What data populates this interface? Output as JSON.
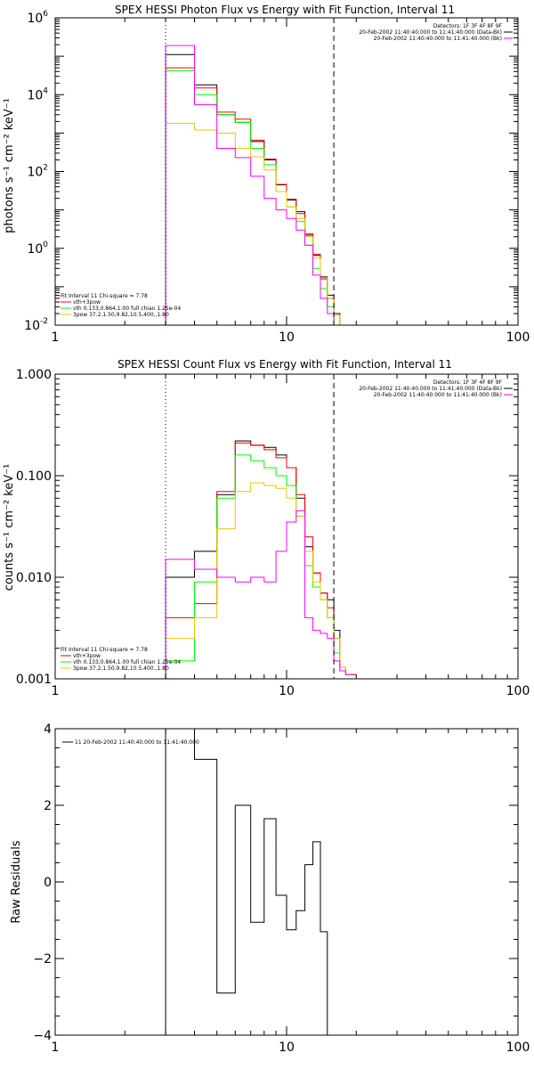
{
  "chart_data": [
    {
      "type": "line",
      "title": "SPEX HESSI Photon Flux vs Energy with Fit Function, Interval 11",
      "ylabel": "photons s⁻¹ cm⁻² keV⁻¹",
      "xlabel": "",
      "xscale": "log",
      "yscale": "log",
      "xlim": [
        1,
        100
      ],
      "ylim": [
        0.01,
        1000000
      ],
      "x_ticks": [
        1,
        10,
        100
      ],
      "x_tick_labels": [
        "1",
        "10",
        "100"
      ],
      "y_ticks": [
        0.01,
        1,
        100,
        10000,
        1000000
      ],
      "y_tick_labels": [
        [
          "10",
          "-2"
        ],
        [
          "10",
          "0"
        ],
        [
          "10",
          "2"
        ],
        [
          "10",
          "4"
        ],
        [
          "10",
          "6"
        ]
      ],
      "vlines": [
        {
          "x": 3.0,
          "style": "dotted"
        },
        {
          "x": 16.0,
          "style": "dashed"
        }
      ],
      "legend_right": {
        "position": "top-right",
        "lines": [
          {
            "text": "Detectors: 1F 3F 4F 8F 9F",
            "color": ""
          },
          {
            "text": "20-Feb-2002 11:40:40.000 to 11:41:40.000 (Data-Bk)",
            "color": "#000000"
          },
          {
            "text": "20-Feb-2002 11:40:40.000 to 11:41:40.000 (Bk)",
            "color": "#ff00ff"
          }
        ]
      },
      "legend_left": {
        "position": "bottom-left",
        "lines": [
          {
            "text": "Fit Interval 11    Chi-square = 7.78",
            "color": ""
          },
          {
            "text": "vth+3pow",
            "color": "#ff0000"
          },
          {
            "text": "vth 0.133,0.864,1.00  full chian 1.25e-04",
            "color": "#00ff00"
          },
          {
            "text": "3pow 37.2,1.50,9.82,10.5,400.,1.80",
            "color": "#e6c800"
          }
        ]
      },
      "x_edges": [
        3.0,
        4.0,
        5.0,
        6.0,
        7.0,
        8.0,
        9.0,
        10.0,
        11.0,
        12.0,
        13.0,
        14.0,
        15.0,
        16.0,
        17.0,
        18.0,
        20.0
      ],
      "series": [
        {
          "color": "#000000",
          "values": [
            110000,
            18000,
            3000,
            1900,
            600,
            200,
            45,
            18,
            9,
            2.2,
            0.65,
            0.18,
            0.06,
            0.02,
            0.009,
            0.01
          ]
        },
        {
          "color": "#ff0000",
          "values": [
            50000,
            15000,
            3500,
            2300,
            650,
            210,
            46,
            19,
            8,
            2.4,
            0.7,
            0.16,
            0.05,
            0.018,
            0.009,
            0.01
          ]
        },
        {
          "color": "#00ff00",
          "values": [
            42000,
            10000,
            3000,
            1900,
            400,
            150,
            30,
            12,
            5,
            1.2,
            0.3,
            0.09,
            0.03,
            0.01,
            0.009,
            0.01
          ]
        },
        {
          "color": "#e6c800",
          "values": [
            1800,
            1200,
            1000,
            400,
            240,
            110,
            30,
            12,
            6,
            2.0,
            0.55,
            0.17,
            0.05,
            0.018,
            0.009,
            0.01
          ]
        },
        {
          "color": "#ff00ff",
          "values": [
            190000,
            5500,
            400,
            230,
            75,
            20,
            10,
            6,
            3,
            1.2,
            0.2,
            0.05,
            0.02,
            0.01,
            0.009,
            0.01
          ]
        }
      ]
    },
    {
      "type": "line",
      "title": "SPEX HESSI Count Flux vs Energy with Fit Function, Interval 11",
      "ylabel": "counts s⁻¹ cm⁻² keV⁻¹",
      "xlabel": "",
      "xscale": "log",
      "yscale": "log",
      "xlim": [
        1,
        100
      ],
      "ylim": [
        0.001,
        1.0
      ],
      "x_ticks": [
        1,
        10,
        100
      ],
      "x_tick_labels": [
        "1",
        "10",
        "100"
      ],
      "y_ticks": [
        0.001,
        0.01,
        0.1,
        1.0
      ],
      "y_tick_labels": [
        "0.001",
        "0.010",
        "0.100",
        "1.000"
      ],
      "vlines": [
        {
          "x": 3.0,
          "style": "dotted"
        },
        {
          "x": 16.0,
          "style": "dashed"
        }
      ],
      "legend_right": {
        "position": "top-right",
        "lines": [
          {
            "text": "Detectors: 1F 3F 4F 8F 9F",
            "color": ""
          },
          {
            "text": "20-Feb-2002 11:40:40.000 to 11:41:40.000 (Data-Bk)",
            "color": "#000000"
          },
          {
            "text": "20-Feb-2002 11:40:40.000 to 11:41:40.000 (Bk)",
            "color": "#ff00ff"
          }
        ]
      },
      "legend_left": {
        "position": "bottom-left",
        "lines": [
          {
            "text": "Fit Interval 11    Chi-square = 7.78",
            "color": ""
          },
          {
            "text": "vth+3pow",
            "color": "#ff0000"
          },
          {
            "text": "vth 0.133,0.864,1.00  full chian 1.25e-04",
            "color": "#00ff00"
          },
          {
            "text": "3pow 37.2,1.50,9.82,10.5,400.,1.80",
            "color": "#e6c800"
          }
        ]
      },
      "x_edges": [
        3.0,
        4.0,
        5.0,
        6.0,
        7.0,
        8.0,
        9.0,
        10.0,
        11.0,
        12.0,
        13.0,
        14.0,
        15.0,
        16.0,
        17.0,
        18.0,
        20.0
      ],
      "series": [
        {
          "color": "#000000",
          "values": [
            0.01,
            0.018,
            0.065,
            0.22,
            0.2,
            0.19,
            0.16,
            0.12,
            0.06,
            0.02,
            0.011,
            0.007,
            0.006,
            0.003,
            0.0013,
            0.0011
          ]
        },
        {
          "color": "#ff0000",
          "values": [
            0.004,
            0.0055,
            0.07,
            0.21,
            0.2,
            0.18,
            0.15,
            0.12,
            0.065,
            0.025,
            0.011,
            0.007,
            0.005,
            0.0025,
            0.0013,
            0.0011
          ]
        },
        {
          "color": "#00ff00",
          "values": [
            0.0015,
            0.009,
            0.06,
            0.16,
            0.14,
            0.12,
            0.1,
            0.08,
            0.04,
            0.013,
            0.008,
            0.006,
            0.004,
            0.0018,
            0.0012,
            0.0011
          ]
        },
        {
          "color": "#e6c800",
          "values": [
            0.0025,
            0.004,
            0.03,
            0.07,
            0.085,
            0.08,
            0.075,
            0.06,
            0.04,
            0.018,
            0.009,
            0.006,
            0.004,
            0.0025,
            0.0013,
            0.0011
          ]
        },
        {
          "color": "#ff00ff",
          "values": [
            0.015,
            0.012,
            0.01,
            0.009,
            0.01,
            0.009,
            0.018,
            0.035,
            0.045,
            0.004,
            0.003,
            0.0028,
            0.0025,
            0.0015,
            0.0012,
            0.0011
          ]
        }
      ]
    },
    {
      "type": "line",
      "title": "",
      "ylabel": "Raw Residuals",
      "xlabel": "",
      "xscale": "log",
      "yscale": "linear",
      "xlim": [
        1,
        100
      ],
      "ylim": [
        -4,
        4
      ],
      "x_ticks": [
        1,
        10,
        100
      ],
      "x_tick_labels": [
        "1",
        "10",
        "100"
      ],
      "y_ticks": [
        -4,
        -2,
        0,
        2,
        4
      ],
      "y_tick_labels": [
        "−4",
        "−2",
        "0",
        "2",
        "4"
      ],
      "legend": {
        "position": "top-left",
        "lines": [
          {
            "text": "11  20-Feb-2002 11:40:40.000 to 11:41:40.000",
            "color": "#000000"
          }
        ]
      },
      "x_edges": [
        3.0,
        4.0,
        5.0,
        6.0,
        7.0,
        8.0,
        9.0,
        10.0,
        11.0,
        12.0,
        13.0,
        14.0,
        15.0,
        16.0
      ],
      "series": [
        {
          "color": "#000000",
          "values": [
            4.0,
            3.2,
            -2.9,
            2.0,
            -1.05,
            1.65,
            -0.35,
            -1.25,
            -0.75,
            0.45,
            1.05,
            -1.3,
            -4.0
          ]
        }
      ]
    }
  ]
}
